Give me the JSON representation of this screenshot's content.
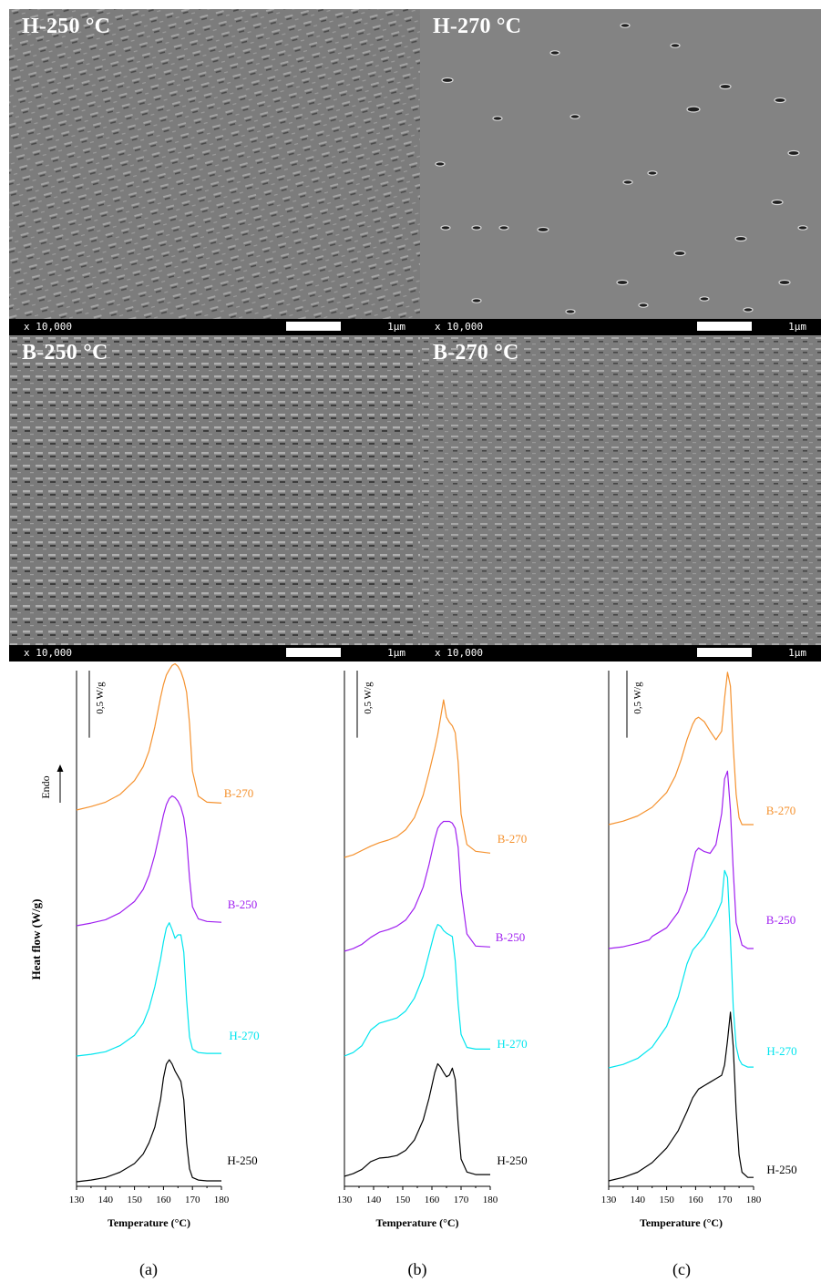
{
  "sem_panels": [
    {
      "label": "H-250 °C",
      "magnification": "x 10,000",
      "scale": "1μm"
    },
    {
      "label": "H-270 °C",
      "magnification": "x 10,000",
      "scale": "1μm"
    },
    {
      "label": "B-250 °C",
      "magnification": "x 10,000",
      "scale": "1μm"
    },
    {
      "label": "B-270 °C",
      "magnification": "x 10,000",
      "scale": "1μm"
    }
  ],
  "dsc": {
    "ylabel": "Heat flow (W/g)",
    "endo_label": "Endo",
    "scale_bar_label": "0,5 W/g",
    "xlabel": "Temperature (°C)",
    "panel_letters": [
      "(a)",
      "(b)",
      "(c)"
    ]
  },
  "colors": {
    "H-250": "#000000",
    "H-270": "#00e5ee",
    "B-250": "#a020f0",
    "B-270": "#f5922f",
    "sem_background": "#7f7f7f"
  },
  "chart_data": [
    {
      "type": "line",
      "panel": "(a)",
      "xlabel": "Temperature (°C)",
      "ylabel": "Heat flow (W/g)",
      "xlim": [
        130,
        180
      ],
      "xticks": [
        "130",
        "140",
        "150",
        "160",
        "170",
        "180"
      ],
      "series": [
        {
          "name": "H-250",
          "x": [
            130,
            135,
            140,
            145,
            150,
            153,
            155,
            157,
            159,
            160,
            161,
            162,
            163,
            164,
            165,
            166,
            167,
            168,
            169,
            170,
            172,
            175,
            180
          ],
          "y": [
            0,
            0.02,
            0.05,
            0.11,
            0.21,
            0.32,
            0.45,
            0.63,
            0.95,
            1.2,
            1.36,
            1.41,
            1.36,
            1.28,
            1.22,
            1.16,
            0.95,
            0.45,
            0.15,
            0.05,
            0.02,
            0.01,
            0.01
          ]
        },
        {
          "name": "H-270",
          "x": [
            130,
            135,
            140,
            145,
            150,
            153,
            155,
            157,
            159,
            160,
            161,
            162,
            163,
            164,
            165,
            166,
            167,
            168,
            169,
            170,
            172,
            175,
            180
          ],
          "y": [
            0,
            0.02,
            0.05,
            0.12,
            0.24,
            0.38,
            0.55,
            0.8,
            1.12,
            1.32,
            1.48,
            1.54,
            1.46,
            1.36,
            1.4,
            1.4,
            1.2,
            0.65,
            0.22,
            0.08,
            0.04,
            0.03,
            0.03
          ]
        },
        {
          "name": "B-250",
          "x": [
            130,
            135,
            140,
            145,
            150,
            153,
            155,
            157,
            159,
            160,
            161,
            162,
            163,
            164,
            165,
            166,
            167,
            168,
            169,
            170,
            172,
            175,
            180
          ],
          "y": [
            0,
            0.03,
            0.07,
            0.15,
            0.28,
            0.42,
            0.58,
            0.82,
            1.12,
            1.28,
            1.4,
            1.47,
            1.5,
            1.48,
            1.44,
            1.37,
            1.25,
            1.0,
            0.55,
            0.22,
            0.08,
            0.05,
            0.04
          ]
        },
        {
          "name": "B-270",
          "x": [
            130,
            135,
            140,
            145,
            150,
            153,
            155,
            157,
            159,
            160,
            161,
            162,
            163,
            164,
            165,
            166,
            167,
            168,
            169,
            170,
            172,
            175,
            180
          ],
          "y": [
            0,
            0.04,
            0.09,
            0.18,
            0.34,
            0.5,
            0.68,
            0.96,
            1.3,
            1.45,
            1.56,
            1.62,
            1.67,
            1.69,
            1.66,
            1.6,
            1.5,
            1.36,
            1.0,
            0.45,
            0.16,
            0.09,
            0.08
          ]
        }
      ]
    },
    {
      "type": "line",
      "panel": "(b)",
      "xlabel": "Temperature (°C)",
      "xlim": [
        130,
        180
      ],
      "xticks": [
        "130",
        "140",
        "150",
        "160",
        "170",
        "180"
      ],
      "series": [
        {
          "name": "H-250",
          "x": [
            130,
            133,
            136,
            139,
            142,
            145,
            148,
            151,
            154,
            157,
            159,
            161,
            162,
            163,
            164,
            165,
            166,
            167,
            168,
            169,
            170,
            172,
            175,
            180
          ],
          "y": [
            0,
            0.03,
            0.08,
            0.17,
            0.21,
            0.22,
            0.24,
            0.3,
            0.42,
            0.65,
            0.9,
            1.2,
            1.3,
            1.26,
            1.2,
            1.15,
            1.17,
            1.25,
            1.12,
            0.6,
            0.2,
            0.05,
            0.02,
            0.02
          ]
        },
        {
          "name": "H-270",
          "x": [
            130,
            133,
            136,
            139,
            142,
            145,
            148,
            151,
            154,
            157,
            159,
            161,
            162,
            163,
            164,
            165,
            166,
            167,
            168,
            169,
            170,
            172,
            175,
            180
          ],
          "y": [
            0,
            0.04,
            0.12,
            0.3,
            0.38,
            0.41,
            0.44,
            0.52,
            0.67,
            0.92,
            1.18,
            1.44,
            1.52,
            1.5,
            1.45,
            1.42,
            1.4,
            1.38,
            1.1,
            0.6,
            0.25,
            0.1,
            0.08,
            0.08
          ]
        },
        {
          "name": "B-250",
          "x": [
            130,
            133,
            136,
            139,
            142,
            145,
            148,
            151,
            154,
            157,
            159,
            161,
            162,
            163,
            164,
            165,
            166,
            167,
            168,
            169,
            170,
            172,
            175,
            180
          ],
          "y": [
            0,
            0.03,
            0.08,
            0.16,
            0.22,
            0.25,
            0.29,
            0.36,
            0.5,
            0.74,
            1.0,
            1.3,
            1.42,
            1.47,
            1.5,
            1.5,
            1.5,
            1.48,
            1.42,
            1.2,
            0.7,
            0.2,
            0.06,
            0.05
          ]
        },
        {
          "name": "B-270",
          "x": [
            130,
            133,
            136,
            139,
            142,
            145,
            148,
            151,
            154,
            157,
            159,
            161,
            162,
            163,
            164,
            165,
            166,
            167,
            168,
            169,
            170,
            172,
            175,
            180
          ],
          "y": [
            0,
            0.03,
            0.08,
            0.13,
            0.17,
            0.2,
            0.24,
            0.32,
            0.46,
            0.72,
            0.98,
            1.26,
            1.42,
            1.62,
            1.82,
            1.62,
            1.56,
            1.52,
            1.44,
            1.1,
            0.5,
            0.15,
            0.07,
            0.05
          ]
        }
      ]
    },
    {
      "type": "line",
      "panel": "(c)",
      "xlabel": "Temperature (°C)",
      "xlim": [
        130,
        180
      ],
      "xticks": [
        "130",
        "140",
        "150",
        "160",
        "170",
        "180"
      ],
      "series": [
        {
          "name": "H-250",
          "x": [
            130,
            135,
            140,
            145,
            150,
            154,
            157,
            159,
            161,
            163,
            165,
            167,
            169,
            170,
            171,
            172,
            173,
            174,
            175,
            176,
            178,
            180
          ],
          "y": [
            0,
            0.04,
            0.1,
            0.21,
            0.38,
            0.58,
            0.8,
            0.96,
            1.06,
            1.1,
            1.14,
            1.18,
            1.22,
            1.34,
            1.62,
            1.95,
            1.55,
            0.8,
            0.3,
            0.1,
            0.04,
            0.04
          ]
        },
        {
          "name": "H-270",
          "x": [
            130,
            135,
            140,
            145,
            150,
            154,
            157,
            159,
            161,
            163,
            165,
            167,
            169,
            170,
            171,
            172,
            173,
            174,
            175,
            176,
            178,
            180
          ],
          "y": [
            0,
            0.04,
            0.11,
            0.24,
            0.48,
            0.82,
            1.2,
            1.36,
            1.44,
            1.52,
            1.64,
            1.76,
            1.92,
            2.28,
            2.2,
            1.5,
            0.7,
            0.25,
            0.1,
            0.04,
            0.01,
            0.01
          ]
        },
        {
          "name": "B-250",
          "x": [
            130,
            135,
            140,
            144,
            145,
            150,
            154,
            157,
            159,
            160,
            161,
            163,
            165,
            167,
            169,
            170,
            171,
            172,
            173,
            174,
            176,
            178,
            180
          ],
          "y": [
            0,
            0.02,
            0.06,
            0.1,
            0.14,
            0.24,
            0.42,
            0.66,
            0.98,
            1.12,
            1.16,
            1.12,
            1.1,
            1.2,
            1.56,
            1.96,
            2.05,
            1.6,
            0.9,
            0.3,
            0.04,
            0.0,
            0.0
          ]
        },
        {
          "name": "B-270",
          "x": [
            130,
            135,
            140,
            145,
            150,
            153,
            155,
            157,
            159,
            160,
            161,
            163,
            165,
            167,
            169,
            170,
            171,
            172,
            173,
            174,
            175,
            176,
            178,
            180
          ],
          "y": [
            0,
            0.04,
            0.1,
            0.2,
            0.37,
            0.56,
            0.75,
            0.98,
            1.16,
            1.22,
            1.24,
            1.19,
            1.08,
            0.98,
            1.08,
            1.46,
            1.76,
            1.6,
            0.9,
            0.35,
            0.08,
            0.0,
            0.0,
            0.0
          ]
        }
      ]
    }
  ]
}
